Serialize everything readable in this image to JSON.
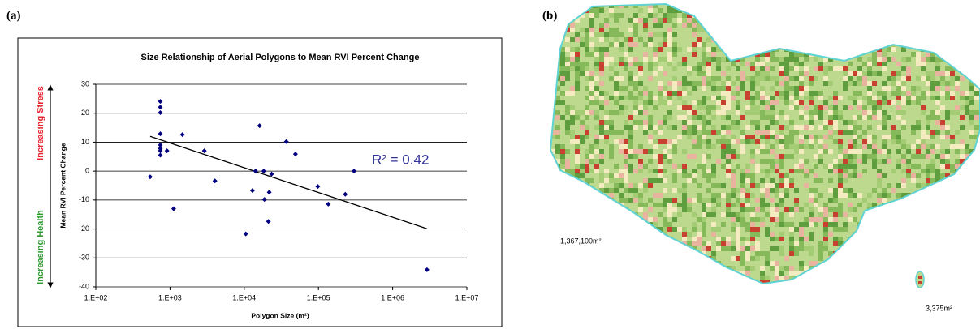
{
  "panel_labels": [
    "(a)",
    "(b)"
  ],
  "side_annotations": {
    "stress": "Increasing Stress",
    "health": "Increasing Health"
  },
  "map": {
    "labels": [
      "1,367,100m²",
      "3,375m²"
    ]
  },
  "chart_data": {
    "type": "scatter",
    "title": "Size Relationship of Aerial Polygons to Mean RVI Percent Change",
    "x_label": "Polygon Size (m²)",
    "y_label": "Mean RVI Percent Change",
    "x": [
      540,
      740,
      740,
      740,
      740,
      740,
      740,
      740,
      740,
      910,
      1120,
      1470,
      2900,
      4030,
      10500,
      12900,
      14200,
      16100,
      18300,
      18700,
      21200,
      21700,
      23400,
      36900,
      49000,
      98000,
      136000,
      230000,
      302000,
      2900000
    ],
    "values": [
      -2.0,
      24.1,
      22.1,
      20.2,
      12.9,
      9.0,
      7.8,
      7.0,
      5.5,
      7.0,
      -13.0,
      12.6,
      7.0,
      -3.4,
      -21.7,
      -6.7,
      0,
      15.7,
      0,
      -9.8,
      -17.4,
      -7.3,
      -1.0,
      10.2,
      5.9,
      -5.3,
      -11.4,
      -8.0,
      0,
      -34.1
    ],
    "color": "#000080",
    "trendline": {
      "x": [
        540,
        2900000
      ],
      "values": [
        12.0,
        -19.9
      ],
      "label": "R² = 0.42",
      "color": "#000000",
      "label_color": "#333399"
    },
    "x_scale": "log",
    "xlim": [
      100,
      10000000
    ],
    "xticks": [
      {
        "value": 100,
        "label": "1.E+02"
      },
      {
        "value": 1000,
        "label": "1.E+03"
      },
      {
        "value": 10000,
        "label": "1.E+04"
      },
      {
        "value": 100000,
        "label": "1.E+05"
      },
      {
        "value": 1000000,
        "label": "1.E+06"
      },
      {
        "value": 10000000,
        "label": "1.E+07"
      }
    ],
    "ylim": [
      -40,
      30
    ],
    "yticks": [
      -40,
      -30,
      -20,
      -10,
      0,
      10,
      20,
      30
    ],
    "grid": true
  }
}
